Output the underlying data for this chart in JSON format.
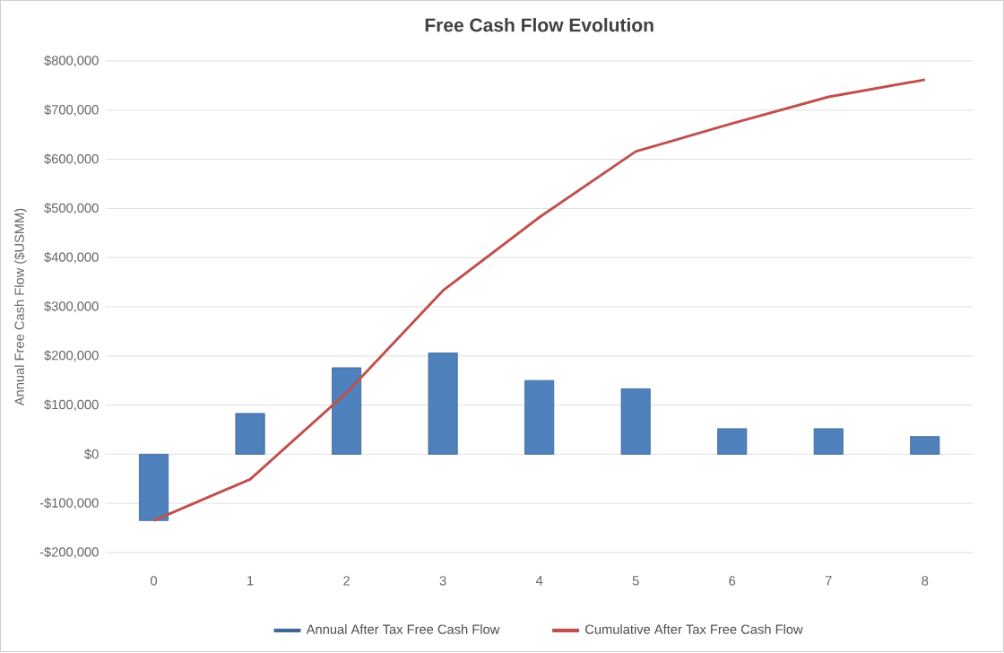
{
  "chart_data": {
    "type": "bar",
    "title": "Free Cash Flow Evolution",
    "ylabel": "Annual Free Cash Flow ($USMM)",
    "categories": [
      "0",
      "1",
      "2",
      "3",
      "4",
      "5",
      "6",
      "7",
      "8"
    ],
    "series": [
      {
        "name": "Annual After Tax Free Cash Flow",
        "color": "#4f81bd",
        "values": [
          -135000,
          83000,
          176000,
          206000,
          150000,
          133000,
          52000,
          52000,
          36000
        ]
      },
      {
        "name": "Cumulative After Tax Free Cash Flow",
        "type": "line",
        "color": "#c0504d",
        "values": [
          -135000,
          -51000,
          125000,
          333000,
          482000,
          616000,
          673000,
          727000,
          762000
        ]
      }
    ],
    "ylim": [
      -200000,
      800000
    ],
    "yticks": [
      {
        "value": -200000,
        "label": "-$200,000"
      },
      {
        "value": -100000,
        "label": "-$100,000"
      },
      {
        "value": 0,
        "label": "$0"
      },
      {
        "value": 100000,
        "label": "$100,000"
      },
      {
        "value": 200000,
        "label": "$200,000"
      },
      {
        "value": 300000,
        "label": "$300,000"
      },
      {
        "value": 400000,
        "label": "$400,000"
      },
      {
        "value": 500000,
        "label": "$500,000"
      },
      {
        "value": 600000,
        "label": "$600,000"
      },
      {
        "value": 700000,
        "label": "$700,000"
      },
      {
        "value": 800000,
        "label": "$800,000"
      }
    ],
    "grid": "y",
    "legend": "bottom",
    "marker": "none",
    "line_style": "solid"
  }
}
